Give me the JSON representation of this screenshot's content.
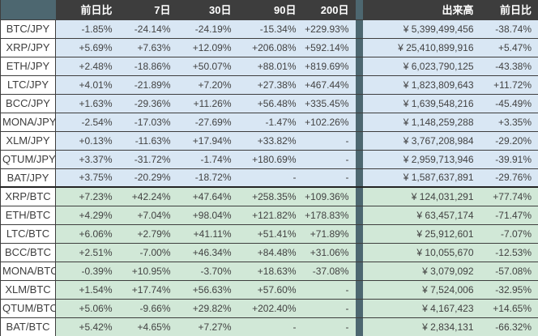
{
  "colors": {
    "header_bg": "#3d3d3d",
    "header_text": "#ffffff",
    "corner_bg": "#4d6770",
    "divider_bg": "#4d6770",
    "jpy_row_bg": "#d9e7f4",
    "btc_row_bg": "#d1e8d7",
    "label_bg": "#ffffff",
    "text": "#424242",
    "border": "#3e3e3e"
  },
  "chart_data": {
    "type": "table",
    "columns": [
      "前日比",
      "7日",
      "30日",
      "90日",
      "200日",
      "出来高",
      "前日比"
    ],
    "legend_note": "columns 0-4 are price change percentages, column 5 is volume in JPY, column 6 is volume day-over-day change",
    "sections": [
      {
        "id": "jpy",
        "quote_currency": "JPY",
        "rows": [
          {
            "pair": "BTC/JPY",
            "values": [
              "-1.85%",
              "-24.14%",
              "-24.19%",
              "-15.34%",
              "+229.93%",
              "¥ 5,399,499,456",
              "-38.74%"
            ]
          },
          {
            "pair": "XRP/JPY",
            "values": [
              "+5.69%",
              "+7.63%",
              "+12.09%",
              "+206.08%",
              "+592.14%",
              "¥ 25,410,899,916",
              "+5.47%"
            ]
          },
          {
            "pair": "ETH/JPY",
            "values": [
              "+2.48%",
              "-18.86%",
              "+50.07%",
              "+88.01%",
              "+819.69%",
              "¥ 6,023,790,125",
              "-43.38%"
            ]
          },
          {
            "pair": "LTC/JPY",
            "values": [
              "+4.01%",
              "-21.89%",
              "+7.20%",
              "+27.38%",
              "+467.44%",
              "¥ 1,823,809,643",
              "+11.72%"
            ]
          },
          {
            "pair": "BCC/JPY",
            "values": [
              "+1.63%",
              "-29.36%",
              "+11.26%",
              "+56.48%",
              "+335.45%",
              "¥ 1,639,548,216",
              "-45.49%"
            ]
          },
          {
            "pair": "MONA/JPY",
            "values": [
              "-2.54%",
              "-17.03%",
              "-27.69%",
              "-1.47%",
              "+102.26%",
              "¥ 1,148,259,288",
              "+3.35%"
            ]
          },
          {
            "pair": "XLM/JPY",
            "values": [
              "+0.13%",
              "-11.63%",
              "+17.94%",
              "+33.82%",
              "-",
              "¥ 3,767,208,984",
              "-29.20%"
            ]
          },
          {
            "pair": "QTUM/JPY",
            "values": [
              "+3.37%",
              "-31.72%",
              "-1.74%",
              "+180.69%",
              "-",
              "¥ 2,959,713,946",
              "-39.91%"
            ]
          },
          {
            "pair": "BAT/JPY",
            "values": [
              "+3.75%",
              "-20.29%",
              "-18.72%",
              "-",
              "-",
              "¥ 1,587,637,891",
              "-29.76%"
            ]
          }
        ]
      },
      {
        "id": "btc",
        "quote_currency": "BTC",
        "rows": [
          {
            "pair": "XRP/BTC",
            "values": [
              "+7.23%",
              "+42.24%",
              "+47.64%",
              "+258.35%",
              "+109.36%",
              "¥ 124,031,291",
              "+77.74%"
            ]
          },
          {
            "pair": "ETH/BTC",
            "values": [
              "+4.29%",
              "+7.04%",
              "+98.04%",
              "+121.82%",
              "+178.83%",
              "¥ 63,457,174",
              "-71.47%"
            ]
          },
          {
            "pair": "LTC/BTC",
            "values": [
              "+6.06%",
              "+2.79%",
              "+41.11%",
              "+51.41%",
              "+71.89%",
              "¥ 25,912,601",
              "-7.07%"
            ]
          },
          {
            "pair": "BCC/BTC",
            "values": [
              "+2.51%",
              "-7.00%",
              "+46.34%",
              "+84.48%",
              "+31.06%",
              "¥ 10,055,670",
              "-12.53%"
            ]
          },
          {
            "pair": "MONA/BTC",
            "values": [
              "-0.39%",
              "+10.95%",
              "-3.70%",
              "+18.63%",
              "-37.08%",
              "¥ 3,079,092",
              "-57.08%"
            ]
          },
          {
            "pair": "XLM/BTC",
            "values": [
              "+1.54%",
              "+17.74%",
              "+56.63%",
              "+57.60%",
              "-",
              "¥ 7,524,006",
              "-32.95%"
            ]
          },
          {
            "pair": "QTUM/BTC",
            "values": [
              "+5.06%",
              "-9.66%",
              "+29.82%",
              "+202.40%",
              "-",
              "¥ 4,167,423",
              "+14.65%"
            ]
          },
          {
            "pair": "BAT/BTC",
            "values": [
              "+5.42%",
              "+4.65%",
              "+7.27%",
              "-",
              "-",
              "¥ 2,834,131",
              "-66.32%"
            ]
          }
        ]
      }
    ]
  }
}
